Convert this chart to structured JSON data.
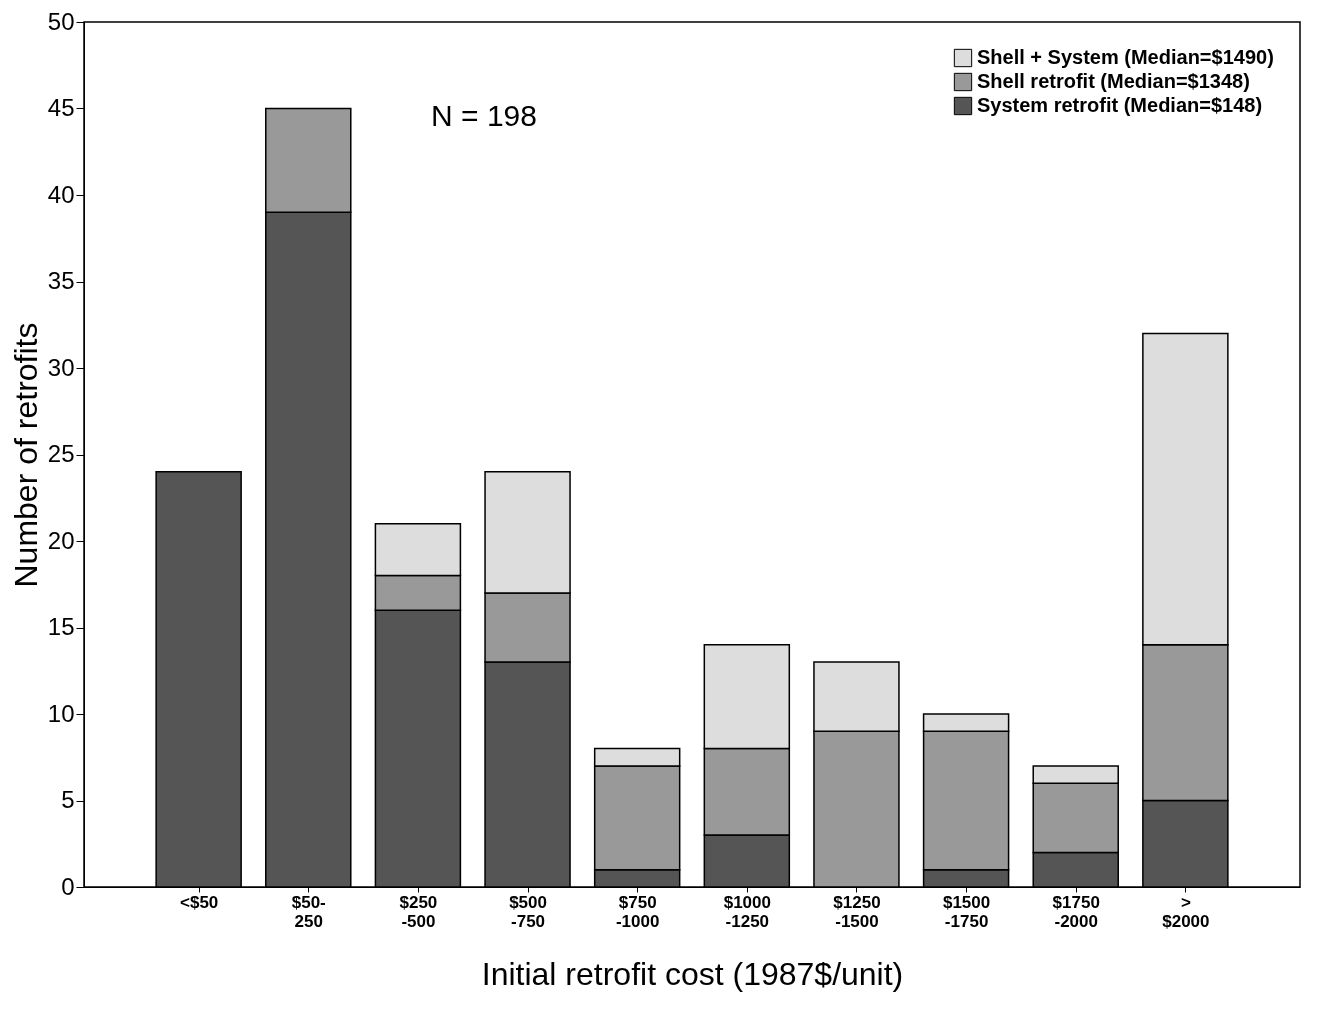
{
  "chart_data": {
    "type": "bar",
    "stacked": true,
    "xlabel": "Initial retrofit cost (1987$/unit)",
    "ylabel": "Number of retrofits",
    "categories": [
      "<$50",
      "$50-\n250",
      "$250\n-500",
      "$500\n-750",
      "$750\n-1000",
      "$1000\n-1250",
      "$1250\n-1500",
      "$1500\n-1750",
      "$1750\n-2000",
      ">\n$2000"
    ],
    "series": [
      {
        "name": "System retrofit (Median=$148)",
        "color": "#555555",
        "values": [
          24,
          39,
          16,
          13,
          1,
          3,
          0,
          1,
          2,
          5
        ]
      },
      {
        "name": "Shell retrofit (Median=$1348)",
        "color": "#999999",
        "values": [
          0,
          6,
          2,
          4,
          6,
          5,
          9,
          8,
          4,
          9
        ]
      },
      {
        "name": "Shell + System (Median=$1490)",
        "color": "#dddddd",
        "values": [
          0,
          0,
          3,
          7,
          1,
          6,
          4,
          1,
          1,
          18
        ]
      }
    ],
    "ylim": [
      0,
      50
    ],
    "yticks": [
      0,
      5,
      10,
      15,
      20,
      25,
      30,
      35,
      40,
      45,
      50
    ],
    "annotations": [
      "N = 198"
    ],
    "legend": "top right",
    "grid": false
  }
}
